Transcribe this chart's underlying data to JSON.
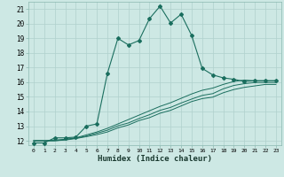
{
  "title": "",
  "xlabel": "Humidex (Indice chaleur)",
  "ylabel": "",
  "bg_color": "#cde8e4",
  "grid_color": "#b0d0cc",
  "line_color": "#1a6e5e",
  "xlim": [
    -0.5,
    23.5
  ],
  "ylim": [
    11.7,
    21.5
  ],
  "yticks": [
    12,
    13,
    14,
    15,
    16,
    17,
    18,
    19,
    20,
    21
  ],
  "xticks": [
    0,
    1,
    2,
    3,
    4,
    5,
    6,
    7,
    8,
    9,
    10,
    11,
    12,
    13,
    14,
    15,
    16,
    17,
    18,
    19,
    20,
    21,
    22,
    23
  ],
  "line1_x": [
    0,
    1,
    2,
    3,
    4,
    5,
    6,
    7,
    8,
    9,
    10,
    11,
    12,
    13,
    14,
    15,
    16,
    17,
    18,
    19,
    20,
    21,
    22,
    23
  ],
  "line1_y": [
    11.85,
    11.85,
    12.2,
    12.2,
    12.25,
    13.0,
    13.15,
    16.6,
    19.0,
    18.55,
    18.85,
    20.35,
    21.2,
    20.05,
    20.65,
    19.2,
    16.95,
    16.5,
    16.3,
    16.2,
    16.05,
    16.1,
    16.1,
    16.1
  ],
  "line2_x": [
    0,
    1,
    2,
    3,
    4,
    5,
    6,
    7,
    8,
    9,
    10,
    11,
    12,
    13,
    14,
    15,
    16,
    17,
    18,
    19,
    20,
    21,
    22,
    23
  ],
  "line2_y": [
    12.0,
    12.0,
    12.05,
    12.1,
    12.2,
    12.4,
    12.6,
    12.85,
    13.15,
    13.45,
    13.75,
    14.05,
    14.35,
    14.6,
    14.9,
    15.2,
    15.45,
    15.6,
    15.85,
    16.05,
    16.15,
    16.1,
    16.1,
    16.1
  ],
  "line3_x": [
    0,
    1,
    2,
    3,
    4,
    5,
    6,
    7,
    8,
    9,
    10,
    11,
    12,
    13,
    14,
    15,
    16,
    17,
    18,
    19,
    20,
    21,
    22,
    23
  ],
  "line3_y": [
    12.0,
    12.0,
    12.0,
    12.08,
    12.18,
    12.32,
    12.52,
    12.72,
    13.02,
    13.22,
    13.52,
    13.78,
    14.08,
    14.28,
    14.58,
    14.85,
    15.1,
    15.22,
    15.55,
    15.78,
    15.9,
    15.98,
    15.98,
    15.98
  ],
  "line4_x": [
    0,
    1,
    2,
    3,
    4,
    5,
    6,
    7,
    8,
    9,
    10,
    11,
    12,
    13,
    14,
    15,
    16,
    17,
    18,
    19,
    20,
    21,
    22,
    23
  ],
  "line4_y": [
    12.0,
    12.0,
    12.0,
    12.05,
    12.15,
    12.28,
    12.42,
    12.6,
    12.88,
    13.08,
    13.38,
    13.58,
    13.88,
    14.08,
    14.38,
    14.68,
    14.88,
    14.98,
    15.28,
    15.5,
    15.65,
    15.75,
    15.85,
    15.85
  ]
}
